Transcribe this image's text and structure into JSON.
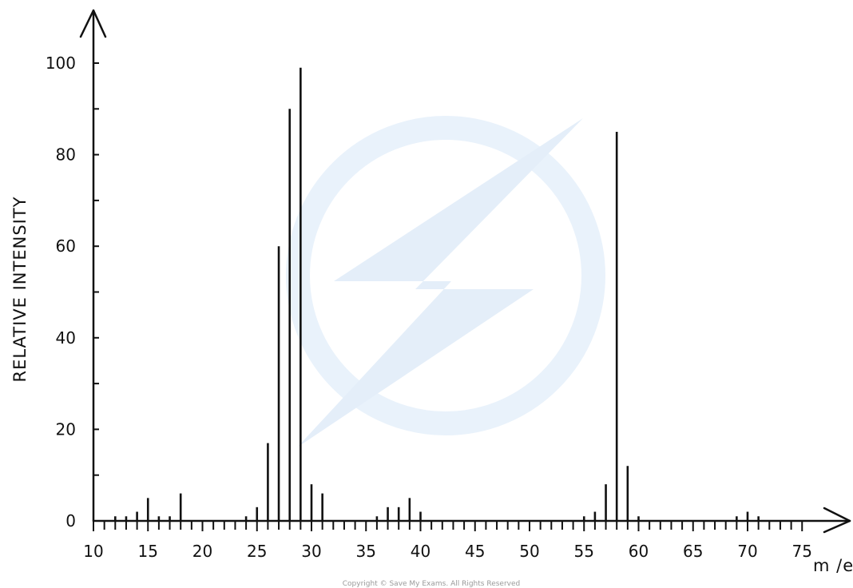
{
  "chart_data": {
    "type": "bar",
    "title": "",
    "xlabel": "m /e",
    "ylabel": "RELATIVE INTENSITY",
    "xlim": [
      10,
      77
    ],
    "ylim": [
      0,
      100
    ],
    "x_ticks": [
      10,
      15,
      20,
      25,
      30,
      35,
      40,
      45,
      50,
      55,
      60,
      65,
      70,
      75
    ],
    "y_ticks": [
      0,
      20,
      40,
      60,
      80,
      100
    ],
    "grid": false,
    "legend": "none",
    "colors": {
      "line": "#111111",
      "watermark": "#e6f0fa"
    },
    "peaks": [
      {
        "x": 12,
        "y": 1
      },
      {
        "x": 13,
        "y": 1
      },
      {
        "x": 14,
        "y": 2
      },
      {
        "x": 15,
        "y": 5
      },
      {
        "x": 16,
        "y": 1
      },
      {
        "x": 17,
        "y": 1
      },
      {
        "x": 18,
        "y": 6
      },
      {
        "x": 24,
        "y": 1
      },
      {
        "x": 25,
        "y": 3
      },
      {
        "x": 26,
        "y": 17
      },
      {
        "x": 27,
        "y": 60
      },
      {
        "x": 28,
        "y": 90
      },
      {
        "x": 29,
        "y": 99
      },
      {
        "x": 30,
        "y": 8
      },
      {
        "x": 31,
        "y": 6
      },
      {
        "x": 36,
        "y": 1
      },
      {
        "x": 37,
        "y": 3
      },
      {
        "x": 38,
        "y": 3
      },
      {
        "x": 39,
        "y": 5
      },
      {
        "x": 40,
        "y": 2
      },
      {
        "x": 55,
        "y": 1
      },
      {
        "x": 56,
        "y": 2
      },
      {
        "x": 57,
        "y": 8
      },
      {
        "x": 58,
        "y": 85
      },
      {
        "x": 59,
        "y": 12
      },
      {
        "x": 60,
        "y": 1
      },
      {
        "x": 69,
        "y": 1
      },
      {
        "x": 70,
        "y": 2
      },
      {
        "x": 71,
        "y": 1
      }
    ]
  },
  "footer": {
    "copyright": "Copyright © Save My Exams. All Rights Reserved"
  }
}
